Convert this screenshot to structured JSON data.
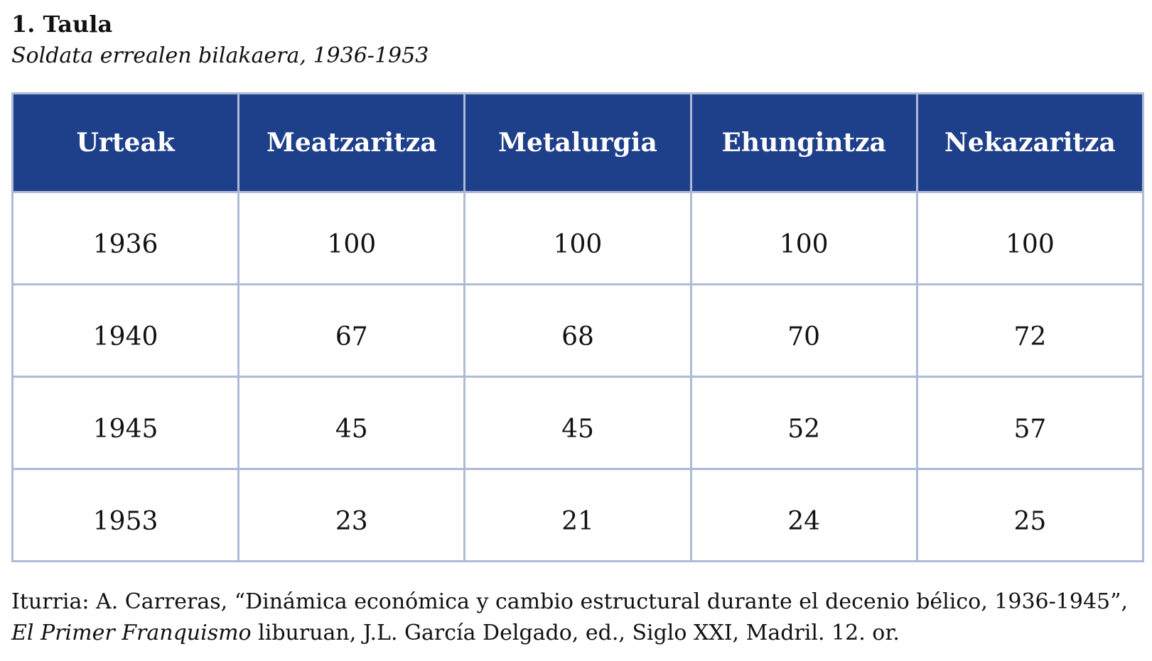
{
  "caption": {
    "label": "1. Taula",
    "subtitle": "Soldata errealen bilakaera, 1936-1953"
  },
  "table": {
    "headers": [
      "Urteak",
      "Meatzaritza",
      "Metalurgia",
      "Ehungintza",
      "Nekazaritza"
    ],
    "rows": [
      [
        "1936",
        "100",
        "100",
        "100",
        "100"
      ],
      [
        "1940",
        "67",
        "68",
        "70",
        "72"
      ],
      [
        "1945",
        "45",
        "45",
        "52",
        "57"
      ],
      [
        "1953",
        "23",
        "21",
        "24",
        "25"
      ]
    ]
  },
  "source": {
    "prefix": "Iturria: A. Carreras, “Dinámica económica y cambio estructural durante el decenio bélico, 1936-1945”, ",
    "book_title": "El Primer Franquismo",
    "suffix": " liburuan, J.L. García Delgado, ed., Siglo XXI, Madril. 12. or."
  },
  "colors": {
    "header_background": "#1e3f8a",
    "header_text": "#ffffff",
    "grid_border": "#aebad6"
  }
}
